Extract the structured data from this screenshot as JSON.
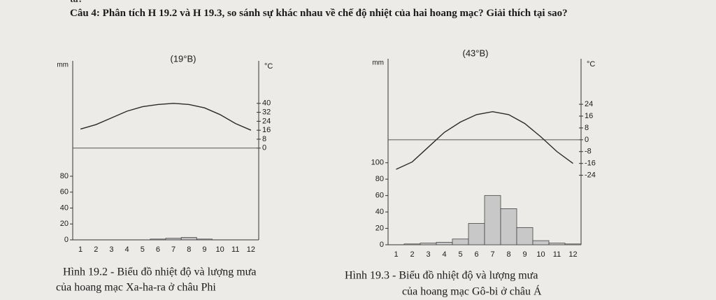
{
  "header": {
    "top": "ta?",
    "label": "Câu 4:",
    "question": "Phân tích H 19.2 và H 19.3, so sánh sự khác nhau về chế độ nhiệt của hai hoang mạc? Giải thích tại sao?"
  },
  "chart_data": [
    {
      "type": "bar",
      "title": "(19°B)",
      "ylabel": "mm",
      "y2label": "°C",
      "categories": [
        "1",
        "2",
        "3",
        "4",
        "5",
        "6",
        "7",
        "8",
        "9",
        "10",
        "11",
        "12"
      ],
      "series": [
        {
          "color": "#bdbdbd",
          "values": [
            0,
            0,
            0,
            0,
            0,
            1,
            2,
            3,
            1,
            0,
            0,
            0
          ]
        },
        {
          "type": "line",
          "axis": "y2",
          "color": "#2a2a2a",
          "values": [
            17,
            21,
            27,
            33,
            37,
            39,
            40,
            39,
            36,
            30,
            22,
            16
          ]
        }
      ],
      "ylim": [
        0,
        218
      ],
      "yticks": [
        0,
        20,
        40,
        60,
        80
      ],
      "y2lim": [
        -82,
        73
      ],
      "y2ticks": [
        0,
        8,
        16,
        24,
        32,
        40
      ],
      "caption": [
        "Hình 19.2 - Biểu đồ nhiệt độ và lượng mưa",
        "của hoang mạc Xa-ha-ra ở châu Phi"
      ]
    },
    {
      "type": "bar",
      "title": "(43°B)",
      "ylabel": "mm",
      "y2label": "°C",
      "categories": [
        "1",
        "2",
        "3",
        "4",
        "5",
        "6",
        "7",
        "8",
        "9",
        "10",
        "11",
        "12"
      ],
      "series": [
        {
          "color": "#c8c8c8",
          "values": [
            0,
            1,
            2,
            3,
            7,
            26,
            60,
            44,
            21,
            5,
            2,
            1
          ]
        },
        {
          "type": "line",
          "axis": "y2",
          "color": "#2a2a2a",
          "values": [
            -20,
            -15,
            -5,
            5,
            12,
            17,
            19,
            17,
            11,
            2,
            -8,
            -16
          ]
        }
      ],
      "ylim": [
        0,
        220
      ],
      "yticks": [
        0,
        20,
        40,
        60,
        80,
        100
      ],
      "y2lim": [
        -71,
        51
      ],
      "y2ticks": [
        -24,
        -16,
        -8,
        0,
        8,
        16,
        24
      ],
      "caption": [
        "Hình 19.3 - Biểu đồ nhiệt độ và lượng mưa",
        "của hoang mạc Gô-bi ở châu Á"
      ]
    }
  ]
}
